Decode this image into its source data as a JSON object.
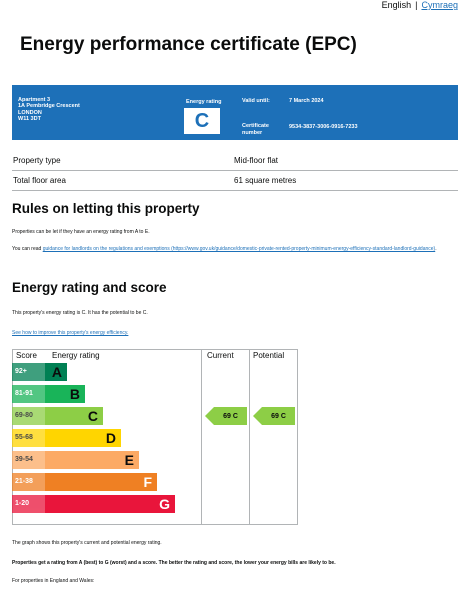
{
  "lang": {
    "english": "English",
    "welsh": "Cymraeg"
  },
  "title": "Energy performance certificate (EPC)",
  "summary": {
    "address": [
      "Apartment 3",
      "1A Pembridge Crescent",
      "LONDON",
      "W11 3DT"
    ],
    "energy_rating_label": "Energy rating",
    "energy_rating": "C",
    "valid_until_label": "Valid until:",
    "valid_until": "7 March 2024",
    "certificate_label_1": "Certificate",
    "certificate_label_2": "number",
    "certificate_number": "9534-3837-3006-0916-7233"
  },
  "rows": [
    {
      "key": "Property type",
      "value": "Mid-floor flat"
    },
    {
      "key": "Total floor area",
      "value": "61 square metres"
    }
  ],
  "rules": {
    "heading": "Rules on letting this property",
    "para": "Properties can be let if they have an energy rating from A to E.",
    "para2_prefix": "You can read ",
    "para2_link": "guidance for landlords on the regulations and exemptions (https://www.gov.uk/guidance/domestic-private-rented-property-minimum-energy-efficiency-standard-landlord-guidance)",
    "para2_suffix": "."
  },
  "energy": {
    "heading": "Energy rating and score",
    "para": "This property's energy rating is C. It has the potential to be C.",
    "link": "See how to improve this property's energy efficiency.",
    "col_score": "Score",
    "col_rating": "Energy rating",
    "col_current": "Current",
    "col_potential": "Potential",
    "bands": [
      {
        "score": "92+",
        "letter": "A",
        "color": "#008054"
      },
      {
        "score": "81-91",
        "letter": "B",
        "color": "#19b459"
      },
      {
        "score": "69-80",
        "letter": "C",
        "color": "#8dce46"
      },
      {
        "score": "55-68",
        "letter": "D",
        "color": "#ffd500"
      },
      {
        "score": "39-54",
        "letter": "E",
        "color": "#fcaa65"
      },
      {
        "score": "21-38",
        "letter": "F",
        "color": "#ef8023"
      },
      {
        "score": "1-20",
        "letter": "G",
        "color": "#e9153b"
      }
    ],
    "current": "69  C",
    "potential": "69  C",
    "current_band": "C",
    "potential_band": "C",
    "note1": "The graph shows this property's current and potential energy rating.",
    "note2": "Properties get a rating from A (best) to G (worst) and a score. The better the rating and score, the lower your energy bills are likely to be.",
    "note3": "For properties in England and Wales:"
  }
}
